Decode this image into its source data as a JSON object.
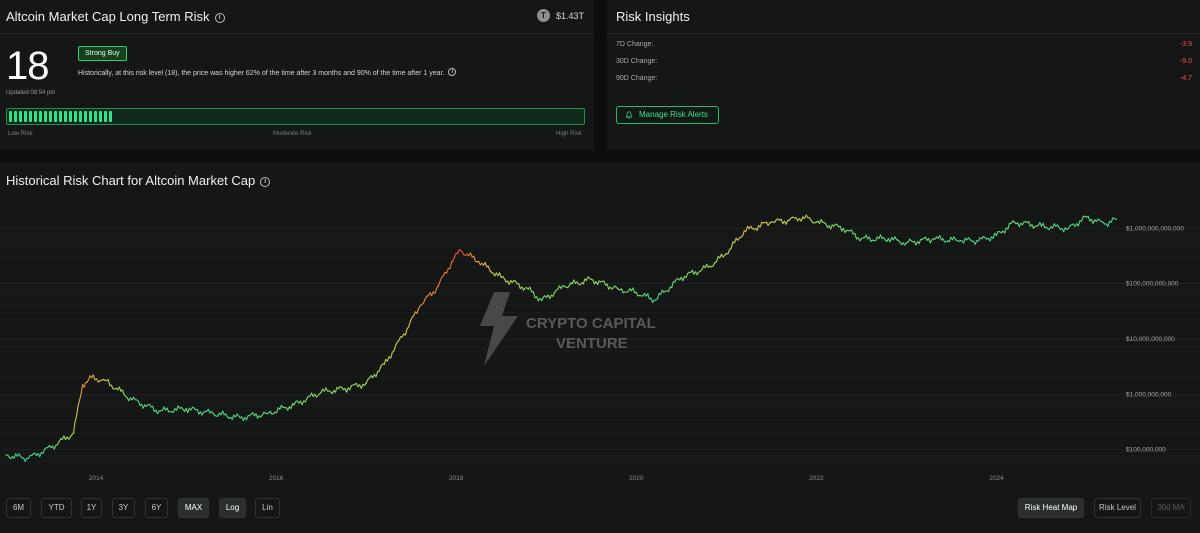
{
  "risk_panel": {
    "title": "Altcoin Market Cap Long Term Risk",
    "market_cap_icon": "T",
    "market_cap": "$1.43T",
    "score": "18",
    "updated": "Updated 08:54 pm",
    "badge": "Strong Buy",
    "description": "Historically, at this risk level (18), the price was higher 62% of the time after 3 months and 90% of the time after 1 year.",
    "risk_level": 0.18,
    "scale_labels": {
      "low": "Low Risk",
      "moderate": "Moderate Risk",
      "high": "High Risk"
    }
  },
  "insights": {
    "title": "Risk Insights",
    "rows": [
      {
        "label": "7D Change:",
        "value": "-3.9"
      },
      {
        "label": "30D Change:",
        "value": "-9.0"
      },
      {
        "label": "90D Change:",
        "value": "-4.7"
      }
    ],
    "manage_label": "Manage Risk Alerts",
    "accent_color": "#3fe08a",
    "negative_color": "#ff4d4d"
  },
  "chart_panel": {
    "title": "Historical Risk Chart for Altcoin Market Cap",
    "watermark": {
      "line1": "CRYPTO CAPITAL",
      "line2": "VENTURE"
    },
    "range_buttons": [
      "6M",
      "YTD",
      "1Y",
      "3Y",
      "6Y",
      "MAX"
    ],
    "active_range": "MAX",
    "scale_buttons": [
      "Log",
      "Lin"
    ],
    "active_scale": "Log",
    "mode_buttons": {
      "heatmap": "Risk Heat Map",
      "level": "Risk Level",
      "ma": "30d MA"
    }
  },
  "chart_data": {
    "type": "line",
    "y_scale": "log",
    "ylim": [
      60000000,
      3000000000000
    ],
    "xlim": [
      2013.0,
      2025.35
    ],
    "grid": true,
    "y_ticks": [
      {
        "value": 100000000,
        "label": "$100,000,000"
      },
      {
        "value": 1000000000,
        "label": "$1,000,000,000"
      },
      {
        "value": 10000000000,
        "label": "$10,000,000,000"
      },
      {
        "value": 100000000000,
        "label": "$100,000,000,000"
      },
      {
        "value": 1000000000000,
        "label": "$1,000,000,000,000"
      }
    ],
    "x_ticks": [
      {
        "value": 2014,
        "label": "2014"
      },
      {
        "value": 2016,
        "label": "2016"
      },
      {
        "value": 2018,
        "label": "2018"
      },
      {
        "value": 2020,
        "label": "2020"
      },
      {
        "value": 2022,
        "label": "2022"
      },
      {
        "value": 2024,
        "label": "2024"
      }
    ],
    "color_scale": [
      "#2fb8a0",
      "#4cd488",
      "#9ad65c",
      "#e0bf4a",
      "#e07a3e",
      "#d83a4a"
    ],
    "x": [
      2013.0,
      2013.25,
      2013.5,
      2013.75,
      2013.85,
      2013.95,
      2014.1,
      2014.4,
      2014.7,
      2015.0,
      2015.3,
      2015.6,
      2015.9,
      2016.2,
      2016.5,
      2016.8,
      2017.0,
      2017.2,
      2017.4,
      2017.6,
      2017.8,
      2017.95,
      2018.05,
      2018.25,
      2018.5,
      2018.8,
      2018.95,
      2019.2,
      2019.5,
      2019.8,
      2020.0,
      2020.2,
      2020.5,
      2020.8,
      2021.0,
      2021.2,
      2021.5,
      2021.7,
      2021.85,
      2022.0,
      2022.3,
      2022.5,
      2022.8,
      2023.0,
      2023.3,
      2023.6,
      2023.8,
      2024.0,
      2024.2,
      2024.5,
      2024.8,
      2025.0,
      2025.2,
      2025.33
    ],
    "y": [
      80000000,
      70000000,
      110000000,
      200000000,
      1500000000,
      2000000000,
      1800000000,
      800000000,
      500000000,
      550000000,
      450000000,
      380000000,
      450000000,
      650000000,
      1100000000,
      1300000000,
      1600000000,
      3500000000,
      11000000000,
      40000000000,
      90000000000,
      250000000000,
      400000000000,
      250000000000,
      130000000000,
      80000000000,
      50000000000,
      90000000000,
      120000000000,
      80000000000,
      70000000000,
      50000000000,
      130000000000,
      200000000000,
      350000000000,
      900000000000,
      1300000000000,
      1400000000000,
      1600000000000,
      1300000000000,
      1000000000000,
      650000000000,
      650000000000,
      550000000000,
      650000000000,
      600000000000,
      600000000000,
      750000000000,
      1300000000000,
      1100000000000,
      1000000000000,
      1600000000000,
      1200000000000,
      1450000000000
    ],
    "risk": [
      0.2,
      0.15,
      0.25,
      0.45,
      0.75,
      0.7,
      0.6,
      0.25,
      0.2,
      0.25,
      0.2,
      0.2,
      0.25,
      0.3,
      0.35,
      0.4,
      0.42,
      0.45,
      0.55,
      0.75,
      0.8,
      0.85,
      0.95,
      0.7,
      0.5,
      0.35,
      0.3,
      0.35,
      0.4,
      0.3,
      0.25,
      0.2,
      0.3,
      0.4,
      0.45,
      0.6,
      0.55,
      0.5,
      0.55,
      0.4,
      0.3,
      0.25,
      0.25,
      0.25,
      0.25,
      0.2,
      0.2,
      0.22,
      0.3,
      0.25,
      0.22,
      0.28,
      0.22,
      0.2
    ]
  }
}
